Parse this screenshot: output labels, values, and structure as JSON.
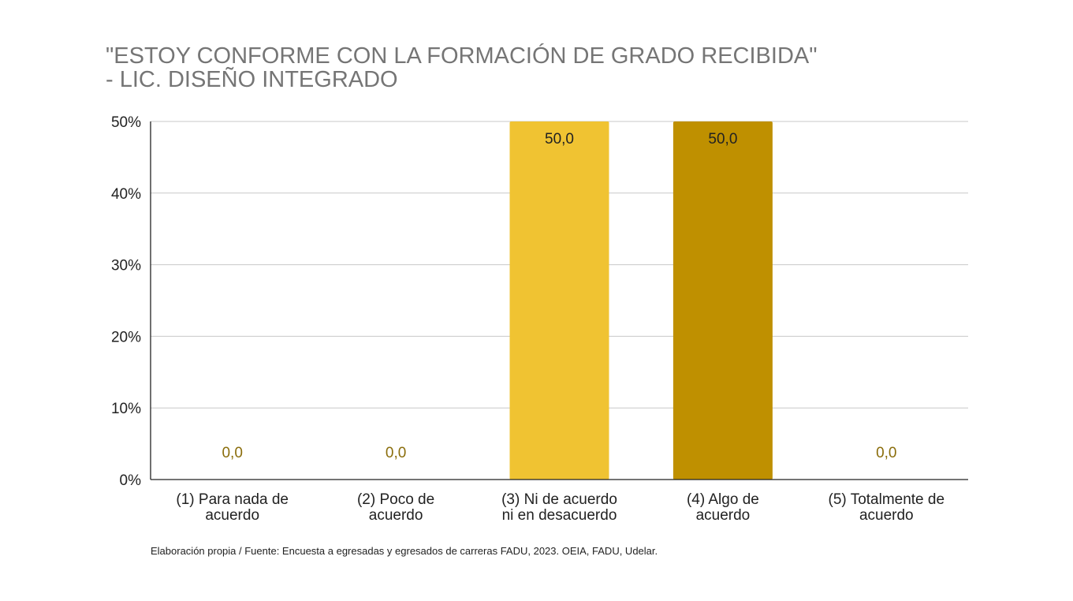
{
  "chart_data": {
    "type": "bar",
    "title_lines": [
      "\"ESTOY CONFORME CON LA FORMACIÓN DE GRADO RECIBIDA\"",
      "- LIC. DISEÑO INTEGRADO"
    ],
    "categories": [
      [
        "(1) Para nada de",
        "acuerdo"
      ],
      [
        "(2) Poco de",
        "acuerdo"
      ],
      [
        "(3) Ni de acuerdo",
        "ni en desacuerdo"
      ],
      [
        "(4) Algo de",
        "acuerdo"
      ],
      [
        "(5) Totalmente de",
        "acuerdo"
      ]
    ],
    "values": [
      0,
      0,
      50,
      50,
      0
    ],
    "value_labels": [
      "0,0",
      "0,0",
      "50,0",
      "50,0",
      "0,0"
    ],
    "bar_colors": [
      "#f0c332",
      "#f0c332",
      "#f0c332",
      "#bf9000",
      "#f0c332"
    ],
    "zero_label_color": "#8a6d0b",
    "value_label_color": "#222222",
    "ylim": [
      0,
      50
    ],
    "y_ticks": [
      0,
      10,
      20,
      30,
      40,
      50
    ],
    "y_tick_labels": [
      "0%",
      "10%",
      "20%",
      "30%",
      "40%",
      "50%"
    ],
    "grid": true,
    "legend": "none"
  },
  "source_note": "Elaboración propia / Fuente: Encuesta a egresadas y egresados de carreras FADU, 2023. OEIA, FADU, Udelar."
}
